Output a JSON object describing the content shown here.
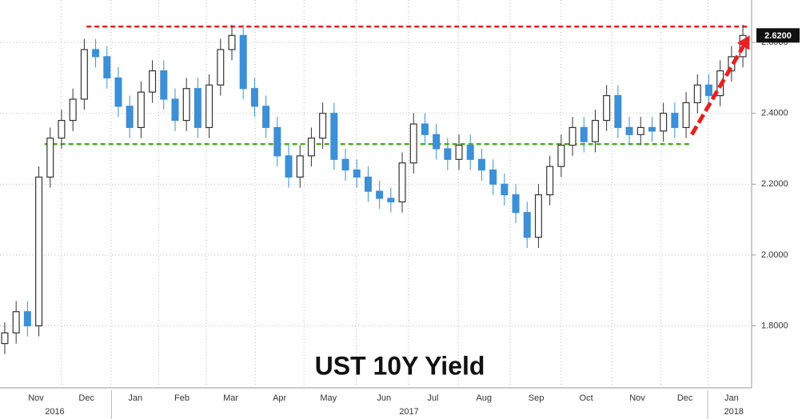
{
  "chart_data": {
    "type": "candlestick",
    "title": "UST 10Y Yield",
    "open": [
      1.75,
      1.78,
      1.84,
      1.8,
      2.22,
      2.33,
      2.38,
      2.44,
      2.58,
      2.56,
      2.5,
      2.42,
      2.36,
      2.46,
      2.52,
      2.44,
      2.38,
      2.47,
      2.36,
      2.48,
      2.58,
      2.62,
      2.47,
      2.42,
      2.36,
      2.28,
      2.22,
      2.28,
      2.33,
      2.4,
      2.27,
      2.24,
      2.22,
      2.18,
      2.16,
      2.15,
      2.26,
      2.37,
      2.34,
      2.3,
      2.27,
      2.31,
      2.27,
      2.24,
      2.2,
      2.17,
      2.12,
      2.05,
      2.17,
      2.25,
      2.31,
      2.36,
      2.32,
      2.38,
      2.45,
      2.36,
      2.34,
      2.36,
      2.35,
      2.4,
      2.36,
      2.43,
      2.48,
      2.45,
      2.52,
      2.56
    ],
    "high": [
      1.81,
      1.87,
      1.87,
      2.25,
      2.36,
      2.41,
      2.47,
      2.61,
      2.61,
      2.59,
      2.53,
      2.45,
      2.49,
      2.55,
      2.55,
      2.47,
      2.5,
      2.5,
      2.51,
      2.61,
      2.65,
      2.65,
      2.5,
      2.45,
      2.39,
      2.31,
      2.31,
      2.36,
      2.43,
      2.43,
      2.3,
      2.27,
      2.25,
      2.21,
      2.19,
      2.29,
      2.4,
      2.4,
      2.37,
      2.33,
      2.34,
      2.34,
      2.3,
      2.27,
      2.23,
      2.2,
      2.15,
      2.2,
      2.28,
      2.34,
      2.39,
      2.39,
      2.41,
      2.48,
      2.48,
      2.39,
      2.39,
      2.39,
      2.43,
      2.43,
      2.46,
      2.51,
      2.51,
      2.55,
      2.59,
      2.65
    ],
    "low": [
      1.72,
      1.75,
      1.77,
      1.77,
      2.19,
      2.3,
      2.35,
      2.41,
      2.53,
      2.47,
      2.39,
      2.33,
      2.33,
      2.43,
      2.41,
      2.35,
      2.35,
      2.33,
      2.33,
      2.45,
      2.55,
      2.44,
      2.39,
      2.33,
      2.25,
      2.19,
      2.19,
      2.25,
      2.3,
      2.24,
      2.21,
      2.19,
      2.15,
      2.13,
      2.12,
      2.12,
      2.23,
      2.31,
      2.27,
      2.24,
      2.24,
      2.24,
      2.21,
      2.17,
      2.14,
      2.09,
      2.02,
      2.02,
      2.14,
      2.22,
      2.28,
      2.29,
      2.29,
      2.35,
      2.33,
      2.31,
      2.31,
      2.32,
      2.32,
      2.33,
      2.33,
      2.4,
      2.42,
      2.42,
      2.49,
      2.53
    ],
    "close": [
      1.78,
      1.84,
      1.8,
      2.22,
      2.33,
      2.38,
      2.44,
      2.58,
      2.56,
      2.5,
      2.42,
      2.36,
      2.46,
      2.52,
      2.44,
      2.38,
      2.47,
      2.36,
      2.48,
      2.58,
      2.62,
      2.47,
      2.42,
      2.36,
      2.28,
      2.22,
      2.28,
      2.33,
      2.4,
      2.27,
      2.24,
      2.22,
      2.18,
      2.16,
      2.15,
      2.26,
      2.37,
      2.34,
      2.3,
      2.27,
      2.31,
      2.27,
      2.24,
      2.2,
      2.17,
      2.12,
      2.05,
      2.17,
      2.25,
      2.31,
      2.36,
      2.32,
      2.38,
      2.45,
      2.36,
      2.34,
      2.36,
      2.35,
      2.4,
      2.36,
      2.43,
      2.48,
      2.45,
      2.52,
      2.56,
      2.62
    ],
    "up_color": "#333333",
    "down_color": "#3d8fd6",
    "xlim": [
      -0.42,
      65.77
    ],
    "ylim": [
      1.625,
      2.72
    ],
    "yticks": [
      {
        "value": 1.8,
        "label": "1.8000"
      },
      {
        "value": 2.0,
        "label": "2.0000"
      },
      {
        "value": 2.2,
        "label": "2.2000"
      },
      {
        "value": 2.4,
        "label": "2.4000"
      },
      {
        "value": 2.6,
        "label": "2.6000"
      }
    ],
    "xticks": [
      {
        "value": 2.75,
        "label": "Nov"
      },
      {
        "value": 7.2,
        "label": "Dec"
      },
      {
        "value": 11.5,
        "label": "Jan"
      },
      {
        "value": 15.6,
        "label": "Feb"
      },
      {
        "value": 19.9,
        "label": "Mar"
      },
      {
        "value": 24.2,
        "label": "Apr"
      },
      {
        "value": 28.5,
        "label": "May"
      },
      {
        "value": 33.4,
        "label": "Jun"
      },
      {
        "value": 37.7,
        "label": "Jul"
      },
      {
        "value": 42.2,
        "label": "Aug"
      },
      {
        "value": 46.8,
        "label": "Sep"
      },
      {
        "value": 51.2,
        "label": "Oct"
      },
      {
        "value": 55.7,
        "label": "Nov"
      },
      {
        "value": 59.9,
        "label": "Dec"
      },
      {
        "value": 64.0,
        "label": "Jan"
      }
    ],
    "year_labels": [
      {
        "value": 4.4,
        "label": "2016"
      },
      {
        "value": 35.6,
        "label": "2017"
      },
      {
        "value": 64.2,
        "label": "2018"
      }
    ],
    "grid": true,
    "last_price": {
      "value": 2.62,
      "label": "2.6200"
    },
    "reference_lines": [
      {
        "value": 2.645,
        "start": 7.2,
        "end": 65.5,
        "color": "#e82020"
      },
      {
        "value": 2.313,
        "start": 3.5,
        "end": 60.5,
        "color": "#4caf1f"
      }
    ],
    "trend_arrow": {
      "x": [
        60.5,
        65.6
      ],
      "y": [
        2.34,
        2.62
      ],
      "color": "#e82020"
    }
  }
}
